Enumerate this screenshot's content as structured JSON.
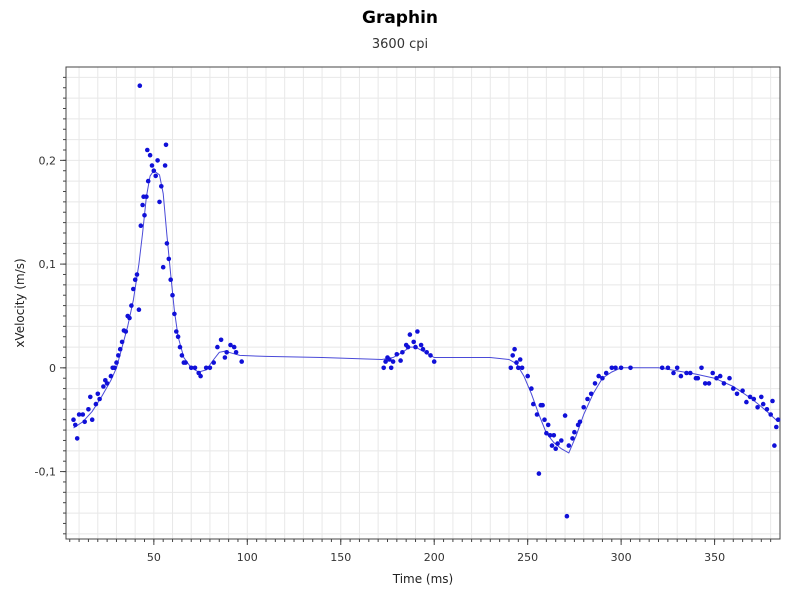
{
  "chart_data": {
    "type": "scatter",
    "title": "Graphin",
    "subtitle": "3600 cpi",
    "xlabel": "Time (ms)",
    "ylabel": "xVelocity (m/s)",
    "xlim": [
      3,
      385
    ],
    "ylim": [
      -0.165,
      0.29
    ],
    "xticks": [
      50,
      100,
      150,
      200,
      250,
      300,
      350
    ],
    "xtick_labels": [
      "50",
      "100",
      "150",
      "200",
      "250",
      "300",
      "350"
    ],
    "yticks": [
      -0.1,
      0,
      0.1,
      0.2
    ],
    "ytick_labels": [
      "-0,1",
      "0",
      "0,1",
      "0,2"
    ],
    "grid": true,
    "colors": {
      "points": "#1010d8",
      "line": "#4a4ad8",
      "grid": "#e8e8e8"
    },
    "series": [
      {
        "type": "scatter",
        "points": [
          [
            7,
            -0.05
          ],
          [
            8,
            -0.055
          ],
          [
            9,
            -0.068
          ],
          [
            10,
            -0.045
          ],
          [
            12,
            -0.045
          ],
          [
            13,
            -0.052
          ],
          [
            15,
            -0.04
          ],
          [
            16,
            -0.028
          ],
          [
            17,
            -0.05
          ],
          [
            19,
            -0.035
          ],
          [
            20,
            -0.025
          ],
          [
            21,
            -0.03
          ],
          [
            23,
            -0.018
          ],
          [
            24,
            -0.012
          ],
          [
            25,
            -0.015
          ],
          [
            27,
            -0.008
          ],
          [
            28,
            0
          ],
          [
            29,
            0
          ],
          [
            30,
            0.005
          ],
          [
            31,
            0.012
          ],
          [
            32,
            0.018
          ],
          [
            33,
            0.025
          ],
          [
            34,
            0.036
          ],
          [
            35,
            0.035
          ],
          [
            36,
            0.05
          ],
          [
            37,
            0.048
          ],
          [
            38,
            0.06
          ],
          [
            39,
            0.076
          ],
          [
            40,
            0.085
          ],
          [
            41,
            0.09
          ],
          [
            42,
            0.056
          ],
          [
            42.5,
            0.272
          ],
          [
            43,
            0.137
          ],
          [
            44,
            0.157
          ],
          [
            44.5,
            0.165
          ],
          [
            45,
            0.147
          ],
          [
            46,
            0.165
          ],
          [
            46.5,
            0.21
          ],
          [
            47,
            0.18
          ],
          [
            48,
            0.205
          ],
          [
            49,
            0.195
          ],
          [
            50,
            0.19
          ],
          [
            51,
            0.185
          ],
          [
            52,
            0.2
          ],
          [
            53,
            0.16
          ],
          [
            54,
            0.175
          ],
          [
            55,
            0.097
          ],
          [
            56,
            0.195
          ],
          [
            56.5,
            0.215
          ],
          [
            57,
            0.12
          ],
          [
            58,
            0.105
          ],
          [
            59,
            0.085
          ],
          [
            60,
            0.07
          ],
          [
            61,
            0.052
          ],
          [
            62,
            0.035
          ],
          [
            63,
            0.03
          ],
          [
            64,
            0.02
          ],
          [
            65,
            0.012
          ],
          [
            66,
            0.005
          ],
          [
            67,
            0.005
          ],
          [
            70,
            0
          ],
          [
            72,
            0
          ],
          [
            74,
            -0.005
          ],
          [
            75,
            -0.008
          ],
          [
            78,
            0
          ],
          [
            80,
            0
          ],
          [
            82,
            0.005
          ],
          [
            84,
            0.02
          ],
          [
            86,
            0.027
          ],
          [
            88,
            0.01
          ],
          [
            89,
            0.015
          ],
          [
            91,
            0.022
          ],
          [
            93,
            0.02
          ],
          [
            94,
            0.015
          ],
          [
            97,
            0.006
          ],
          [
            173,
            0
          ],
          [
            174,
            0.006
          ],
          [
            175,
            0.01
          ],
          [
            176,
            0.008
          ],
          [
            177,
            0
          ],
          [
            178,
            0.006
          ],
          [
            180,
            0.013
          ],
          [
            182,
            0.007
          ],
          [
            183,
            0.015
          ],
          [
            185,
            0.022
          ],
          [
            186,
            0.02
          ],
          [
            187,
            0.032
          ],
          [
            189,
            0.025
          ],
          [
            190,
            0.02
          ],
          [
            191,
            0.035
          ],
          [
            193,
            0.022
          ],
          [
            194,
            0.018
          ],
          [
            196,
            0.015
          ],
          [
            198,
            0.012
          ],
          [
            200,
            0.006
          ],
          [
            241,
            0
          ],
          [
            242,
            0.012
          ],
          [
            243,
            0.018
          ],
          [
            244,
            0.005
          ],
          [
            245,
            0
          ],
          [
            246,
            0.008
          ],
          [
            247,
            0
          ],
          [
            250,
            -0.008
          ],
          [
            252,
            -0.02
          ],
          [
            253,
            -0.035
          ],
          [
            255,
            -0.045
          ],
          [
            256,
            -0.102
          ],
          [
            257,
            -0.036
          ],
          [
            258,
            -0.036
          ],
          [
            259,
            -0.05
          ],
          [
            260,
            -0.063
          ],
          [
            261,
            -0.055
          ],
          [
            262,
            -0.065
          ],
          [
            263,
            -0.075
          ],
          [
            264,
            -0.065
          ],
          [
            265,
            -0.078
          ],
          [
            266,
            -0.073
          ],
          [
            268,
            -0.07
          ],
          [
            270,
            -0.046
          ],
          [
            271,
            -0.143
          ],
          [
            272,
            -0.075
          ],
          [
            274,
            -0.068
          ],
          [
            275,
            -0.062
          ],
          [
            277,
            -0.055
          ],
          [
            278,
            -0.052
          ],
          [
            280,
            -0.038
          ],
          [
            282,
            -0.03
          ],
          [
            284,
            -0.025
          ],
          [
            286,
            -0.015
          ],
          [
            288,
            -0.008
          ],
          [
            290,
            -0.01
          ],
          [
            292,
            -0.005
          ],
          [
            295,
            0
          ],
          [
            297,
            0
          ],
          [
            300,
            0
          ],
          [
            305,
            0
          ],
          [
            322,
            0
          ],
          [
            325,
            0
          ],
          [
            328,
            -0.005
          ],
          [
            330,
            0
          ],
          [
            332,
            -0.008
          ],
          [
            335,
            -0.005
          ],
          [
            337,
            -0.005
          ],
          [
            340,
            -0.01
          ],
          [
            341,
            -0.01
          ],
          [
            343,
            0
          ],
          [
            345,
            -0.015
          ],
          [
            347,
            -0.015
          ],
          [
            349,
            -0.005
          ],
          [
            351,
            -0.01
          ],
          [
            353,
            -0.008
          ],
          [
            355,
            -0.015
          ],
          [
            358,
            -0.01
          ],
          [
            360,
            -0.02
          ],
          [
            362,
            -0.025
          ],
          [
            365,
            -0.022
          ],
          [
            367,
            -0.033
          ],
          [
            369,
            -0.028
          ],
          [
            371,
            -0.03
          ],
          [
            373,
            -0.038
          ],
          [
            375,
            -0.028
          ],
          [
            376,
            -0.035
          ],
          [
            378,
            -0.04
          ],
          [
            380,
            -0.045
          ],
          [
            381,
            -0.032
          ],
          [
            382,
            -0.075
          ],
          [
            383,
            -0.057
          ],
          [
            384,
            -0.05
          ]
        ]
      },
      {
        "type": "line",
        "points": [
          [
            7,
            -0.058
          ],
          [
            12,
            -0.052
          ],
          [
            17,
            -0.042
          ],
          [
            22,
            -0.028
          ],
          [
            27,
            -0.012
          ],
          [
            30,
            0
          ],
          [
            33,
            0.02
          ],
          [
            36,
            0.04
          ],
          [
            39,
            0.065
          ],
          [
            42,
            0.1
          ],
          [
            44,
            0.13
          ],
          [
            46,
            0.165
          ],
          [
            48,
            0.185
          ],
          [
            50,
            0.19
          ],
          [
            53,
            0.186
          ],
          [
            55,
            0.168
          ],
          [
            57,
            0.128
          ],
          [
            59,
            0.09
          ],
          [
            61,
            0.055
          ],
          [
            63,
            0.03
          ],
          [
            66,
            0.01
          ],
          [
            70,
            0
          ],
          [
            74,
            -0.004
          ],
          [
            78,
            -0.002
          ],
          [
            82,
            0.008
          ],
          [
            85,
            0.015
          ],
          [
            88,
            0.016
          ],
          [
            92,
            0.014
          ],
          [
            96,
            0.012
          ],
          [
            110,
            0.011
          ],
          [
            140,
            0.01
          ],
          [
            172,
            0.008
          ],
          [
            178,
            0.01
          ],
          [
            183,
            0.015
          ],
          [
            187,
            0.02
          ],
          [
            190,
            0.02
          ],
          [
            195,
            0.015
          ],
          [
            200,
            0.01
          ],
          [
            215,
            0.01
          ],
          [
            230,
            0.01
          ],
          [
            240,
            0.008
          ],
          [
            244,
            0.004
          ],
          [
            248,
            -0.008
          ],
          [
            252,
            -0.025
          ],
          [
            256,
            -0.045
          ],
          [
            260,
            -0.063
          ],
          [
            264,
            -0.072
          ],
          [
            268,
            -0.078
          ],
          [
            272,
            -0.082
          ],
          [
            276,
            -0.065
          ],
          [
            280,
            -0.045
          ],
          [
            285,
            -0.025
          ],
          [
            290,
            -0.01
          ],
          [
            295,
            -0.004
          ],
          [
            300,
            0
          ],
          [
            310,
            0
          ],
          [
            320,
            0
          ],
          [
            330,
            -0.003
          ],
          [
            340,
            -0.006
          ],
          [
            350,
            -0.01
          ],
          [
            360,
            -0.018
          ],
          [
            370,
            -0.03
          ],
          [
            378,
            -0.042
          ],
          [
            384,
            -0.052
          ]
        ]
      }
    ]
  }
}
